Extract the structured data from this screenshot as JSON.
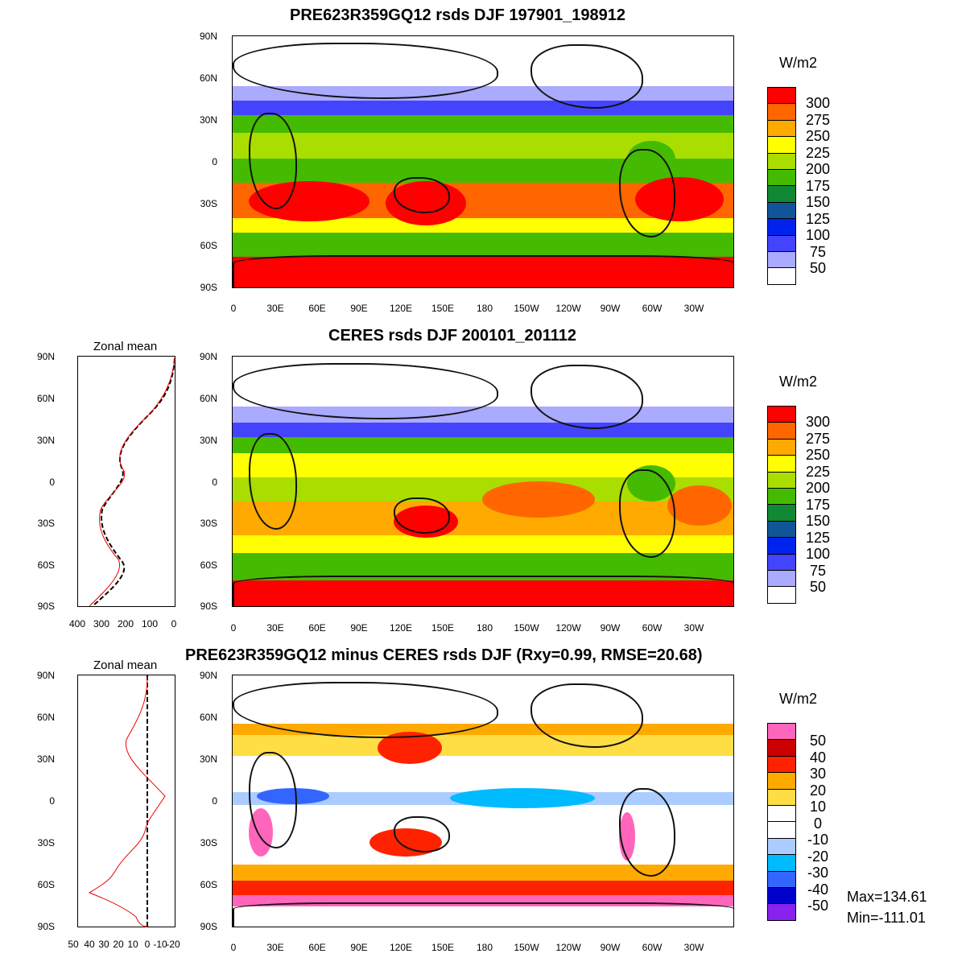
{
  "panels": [
    {
      "title": "PRE623R359GQ12 rsds DJF 197901_198912",
      "units": "W/m2",
      "colorbar_labels": [
        "300",
        "275",
        "250",
        "225",
        "200",
        "175",
        "150",
        "125",
        "100",
        "75",
        "50"
      ],
      "colorbar_colors": [
        "#ff0000",
        "#ff6600",
        "#ffaa00",
        "#ffff00",
        "#aadd00",
        "#44bb00",
        "#118833",
        "#115599",
        "#0022ee",
        "#4444ff",
        "#aaaaff",
        "#ffffff"
      ]
    },
    {
      "title": "CERES rsds DJF 200101_201112",
      "units": "W/m2",
      "colorbar_labels": [
        "300",
        "275",
        "250",
        "225",
        "200",
        "175",
        "150",
        "125",
        "100",
        "75",
        "50"
      ],
      "colorbar_colors": [
        "#ff0000",
        "#ff6600",
        "#ffaa00",
        "#ffff00",
        "#aadd00",
        "#44bb00",
        "#118833",
        "#115599",
        "#0022ee",
        "#4444ff",
        "#aaaaff",
        "#ffffff"
      ]
    },
    {
      "title": "PRE623R359GQ12 minus CERES rsds DJF (Rxy=0.99, RMSE=20.68)",
      "units": "W/m2",
      "colorbar_labels": [
        "50",
        "40",
        "30",
        "20",
        "10",
        "0",
        "-10",
        "-20",
        "-30",
        "-40",
        "-50"
      ],
      "colorbar_colors": [
        "#ff66bb",
        "#cc0000",
        "#ff2200",
        "#ffaa00",
        "#ffdd44",
        "#ffffff",
        "#ffffff",
        "#aaccff",
        "#00bbff",
        "#3366ff",
        "#0000cc",
        "#8822ee"
      ],
      "max_text": "Max=134.61",
      "min_text": "Min=-111.01"
    }
  ],
  "lat_labels": [
    "90N",
    "60N",
    "30N",
    "0",
    "30S",
    "60S",
    "90S"
  ],
  "lon_labels": [
    "0",
    "30E",
    "60E",
    "90E",
    "120E",
    "150E",
    "180",
    "150W",
    "120W",
    "90W",
    "60W",
    "30W"
  ],
  "zonal_mean": [
    {
      "title": "Zonal mean",
      "x_labels": [
        "400",
        "300",
        "200",
        "100",
        "0"
      ]
    },
    {
      "title": "Zonal mean",
      "x_labels": [
        "50",
        "40",
        "30",
        "20",
        "10",
        "0",
        "-10",
        "-20"
      ]
    }
  ]
}
